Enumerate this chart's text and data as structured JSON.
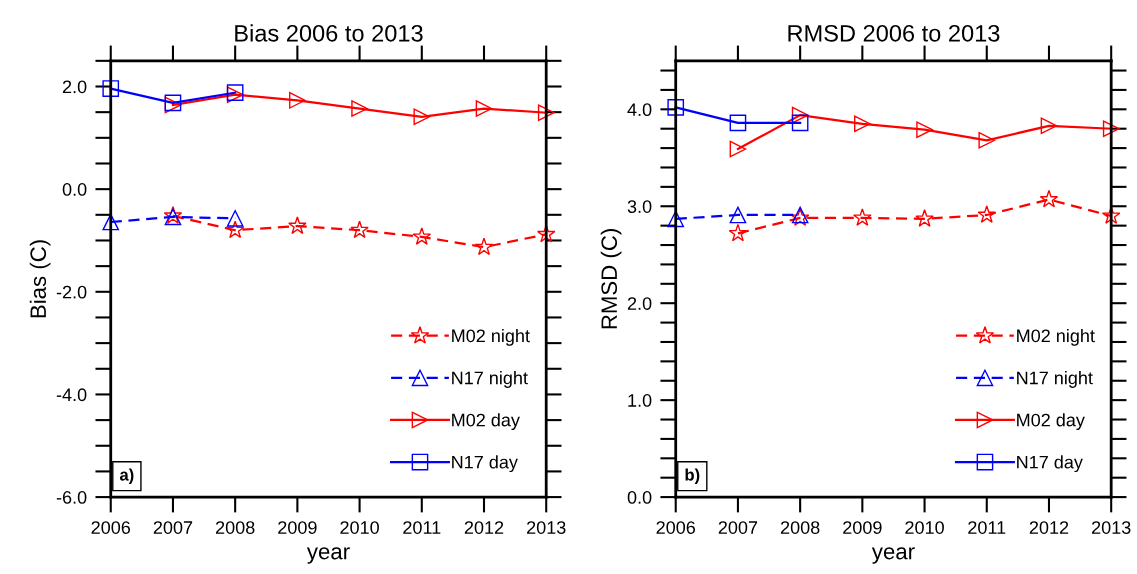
{
  "chart_data": [
    {
      "type": "line",
      "title": "Bias 2006 to 2013",
      "xlabel": "year",
      "ylabel": "Bias (C)",
      "x": [
        2006,
        2007,
        2008,
        2009,
        2010,
        2011,
        2012,
        2013
      ],
      "xlim": [
        2006,
        2013
      ],
      "xticks": [
        2006,
        2007,
        2008,
        2009,
        2010,
        2011,
        2012,
        2013
      ],
      "ylim": [
        -6,
        2.5
      ],
      "yticks": [
        {
          "value": -6,
          "label": "-6.0"
        },
        {
          "value": -5.5,
          "label": null
        },
        {
          "value": -5,
          "label": null
        },
        {
          "value": -4.5,
          "label": null
        },
        {
          "value": -4,
          "label": "-4.0"
        },
        {
          "value": -3.5,
          "label": null
        },
        {
          "value": -3,
          "label": null
        },
        {
          "value": -2.5,
          "label": null
        },
        {
          "value": -2,
          "label": "-2.0"
        },
        {
          "value": -1.5,
          "label": null
        },
        {
          "value": -1,
          "label": null
        },
        {
          "value": -0.5,
          "label": null
        },
        {
          "value": 0,
          "label": "0.0"
        },
        {
          "value": 0.5,
          "label": null
        },
        {
          "value": 1,
          "label": null
        },
        {
          "value": 1.5,
          "label": null
        },
        {
          "value": 2,
          "label": "2.0"
        },
        {
          "value": 2.5,
          "label": null
        }
      ],
      "legend": "bottom right",
      "grid": false,
      "annotations": [
        "a)"
      ],
      "series": [
        {
          "name": "M02 night",
          "color": "#ff0000",
          "line_style": "dashed",
          "marker": "star",
          "values": [
            null,
            -0.52,
            -0.8,
            -0.72,
            -0.8,
            -0.93,
            -1.13,
            -0.88
          ]
        },
        {
          "name": "N17 night",
          "color": "#0000ff",
          "line_style": "dashed",
          "marker": "triangle",
          "values": [
            -0.64,
            -0.54,
            -0.57,
            null,
            null,
            null,
            null,
            null
          ]
        },
        {
          "name": "M02 day",
          "color": "#ff0000",
          "line_style": "solid",
          "marker": "triangle_right",
          "values": [
            null,
            1.64,
            1.84,
            1.73,
            1.57,
            1.41,
            1.57,
            1.49
          ]
        },
        {
          "name": "N17 day",
          "color": "#0000ff",
          "line_style": "solid",
          "marker": "square",
          "values": [
            1.96,
            1.68,
            1.88,
            null,
            null,
            null,
            null,
            null
          ]
        }
      ]
    },
    {
      "type": "line",
      "title": "RMSD 2006 to 2013",
      "xlabel": "year",
      "ylabel": "RMSD (C)",
      "x": [
        2006,
        2007,
        2008,
        2009,
        2010,
        2011,
        2012,
        2013
      ],
      "xlim": [
        2006,
        2013
      ],
      "xticks": [
        2006,
        2007,
        2008,
        2009,
        2010,
        2011,
        2012,
        2013
      ],
      "ylim": [
        0,
        4.5
      ],
      "yticks": [
        {
          "value": 0,
          "label": "0.0"
        },
        {
          "value": 0.2,
          "label": null
        },
        {
          "value": 0.4,
          "label": null
        },
        {
          "value": 0.6,
          "label": null
        },
        {
          "value": 0.8,
          "label": null
        },
        {
          "value": 1,
          "label": "1.0"
        },
        {
          "value": 1.2,
          "label": null
        },
        {
          "value": 1.4,
          "label": null
        },
        {
          "value": 1.6,
          "label": null
        },
        {
          "value": 1.8,
          "label": null
        },
        {
          "value": 2,
          "label": "2.0"
        },
        {
          "value": 2.2,
          "label": null
        },
        {
          "value": 2.4,
          "label": null
        },
        {
          "value": 2.6,
          "label": null
        },
        {
          "value": 2.8,
          "label": null
        },
        {
          "value": 3,
          "label": "3.0"
        },
        {
          "value": 3.2,
          "label": null
        },
        {
          "value": 3.4,
          "label": null
        },
        {
          "value": 3.6,
          "label": null
        },
        {
          "value": 3.8,
          "label": null
        },
        {
          "value": 4,
          "label": "4.0"
        },
        {
          "value": 4.2,
          "label": null
        },
        {
          "value": 4.4,
          "label": null
        }
      ],
      "legend": "bottom right",
      "grid": false,
      "annotations": [
        "b)"
      ],
      "series": [
        {
          "name": "M02 night",
          "color": "#ff0000",
          "line_style": "dashed",
          "marker": "star",
          "values": [
            null,
            2.72,
            2.88,
            2.88,
            2.87,
            2.91,
            3.07,
            2.9
          ]
        },
        {
          "name": "N17 night",
          "color": "#0000ff",
          "line_style": "dashed",
          "marker": "triangle",
          "values": [
            2.87,
            2.91,
            2.91,
            null,
            null,
            null,
            null,
            null
          ]
        },
        {
          "name": "M02 day",
          "color": "#ff0000",
          "line_style": "solid",
          "marker": "triangle_right",
          "values": [
            null,
            3.59,
            3.94,
            3.85,
            3.79,
            3.68,
            3.83,
            3.8
          ]
        },
        {
          "name": "N17 day",
          "color": "#0000ff",
          "line_style": "solid",
          "marker": "square",
          "values": [
            4.02,
            3.86,
            3.86,
            null,
            null,
            null,
            null,
            null
          ]
        }
      ]
    }
  ]
}
